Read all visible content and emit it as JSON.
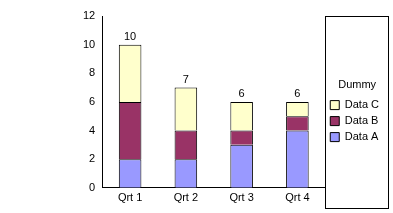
{
  "chart_data": {
    "type": "bar",
    "stacked": true,
    "categories": [
      "Qrt 1",
      "Qrt 2",
      "Qrt 3",
      "Qrt 4"
    ],
    "series": [
      {
        "name": "Data A",
        "color": "#9999ff",
        "values": [
          2,
          2,
          3,
          4
        ]
      },
      {
        "name": "Data B",
        "color": "#993366",
        "values": [
          4,
          2,
          1,
          1
        ]
      },
      {
        "name": "Data C",
        "color": "#ffffcc",
        "values": [
          4,
          3,
          2,
          1
        ]
      }
    ],
    "totals": [
      10,
      7,
      6,
      6
    ],
    "legend_title": "Dummy",
    "legend": "right",
    "ylim": [
      0,
      12
    ],
    "yticks": [
      0,
      2,
      4,
      6,
      8,
      10,
      12
    ],
    "grid": false,
    "data_labels": false
  }
}
